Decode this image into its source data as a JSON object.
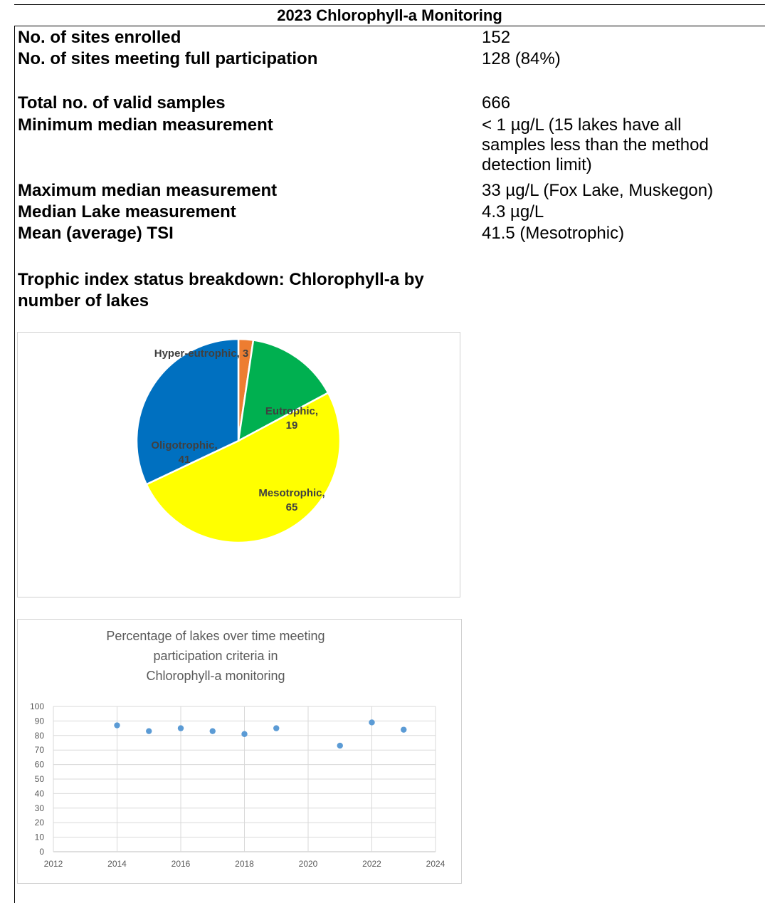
{
  "header": {
    "title": "2023 Chlorophyll-a Monitoring"
  },
  "stats": [
    {
      "label": "No. of sites enrolled",
      "value": "152"
    },
    {
      "label": "No. of sites meeting full participation",
      "value": "128 (84%)"
    },
    {
      "label": "Total no. of valid samples",
      "value": "666"
    },
    {
      "label": "Minimum median measurement",
      "value": "< 1 µg/L (15 lakes have all samples less than the method detection limit)"
    },
    {
      "label": "Maximum median measurement",
      "value": "33 µg/L (Fox Lake, Muskegon)"
    },
    {
      "label": "Median Lake measurement",
      "value": "4.3 µg/L"
    },
    {
      "label": "Mean (average) TSI",
      "value": "41.5 (Mesotrophic)"
    }
  ],
  "section_title": "Trophic index status breakdown: Chlorophyll-a by number of lakes",
  "chart_data": [
    {
      "type": "pie",
      "slices": [
        {
          "label": "Hyper-eutrophic",
          "value": 3,
          "color": "#ED7D31"
        },
        {
          "label": "Eutrophic",
          "value": 19,
          "color": "#00B050"
        },
        {
          "label": "Mesotrophic",
          "value": 65,
          "color": "#FFFF00"
        },
        {
          "label": "Oligotrophic",
          "value": 41,
          "color": "#0070C0"
        }
      ],
      "data_label_color": "#404040"
    },
    {
      "type": "scatter",
      "title": "Percentage of lakes over time meeting participation criteria in Chlorophyll-a monitoring",
      "title_lines": [
        "Percentage of lakes over time meeting",
        "participation criteria in",
        "Chlorophyll-a monitoring"
      ],
      "x": [
        2014,
        2015,
        2016,
        2017,
        2018,
        2019,
        2021,
        2022,
        2023
      ],
      "y": [
        87,
        83,
        85,
        83,
        81,
        85,
        73,
        89,
        84
      ],
      "xlim": [
        2012,
        2024
      ],
      "ylim": [
        0,
        100
      ],
      "xticks": [
        2012,
        2014,
        2016,
        2018,
        2020,
        2022,
        2024
      ],
      "yticks": [
        0,
        10,
        20,
        30,
        40,
        50,
        60,
        70,
        80,
        90,
        100
      ],
      "grid": true,
      "marker_color": "#5B9BD5"
    }
  ]
}
